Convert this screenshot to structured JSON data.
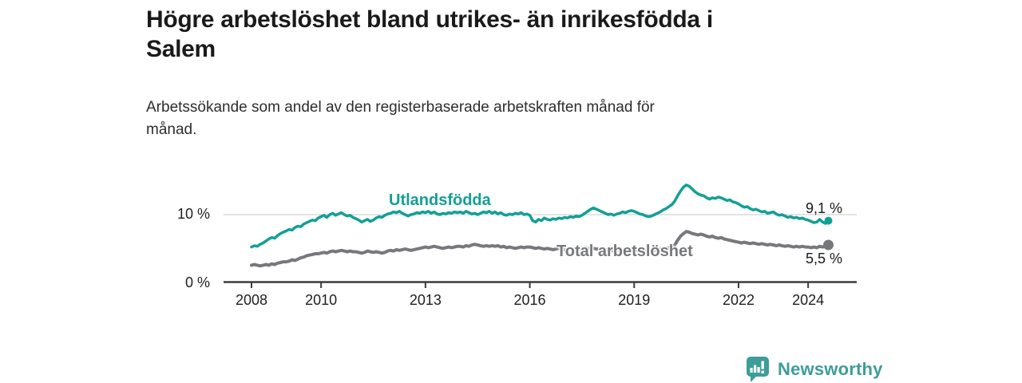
{
  "header": {
    "title_lines": [
      "Högre arbetslöshet bland utrikes- än inrikesfödda i",
      "Salem"
    ],
    "subtitle_lines": [
      "Arbetssökande som andel av den registerbaserade arbetskraften månad för",
      "månad."
    ]
  },
  "chart_data": {
    "type": "line",
    "x_start_year": 2008,
    "x_end": "2024-08",
    "points_per_month": 1,
    "ylim": [
      0,
      15
    ],
    "grid": "horizontal-at-10-only",
    "y_axis_ticks": [
      {
        "value": 0,
        "label": "0 %"
      },
      {
        "value": 10,
        "label": "10 %"
      }
    ],
    "x_ticks": [
      2008,
      2010,
      2013,
      2016,
      2019,
      2022,
      2024
    ],
    "series": [
      {
        "name": "Utlandsfödda",
        "color": "#12A095",
        "end_label": "9,1 %",
        "end_value": 9.1,
        "values": [
          5.2,
          5.4,
          5.3,
          5.6,
          5.8,
          6.1,
          6.4,
          6.6,
          6.5,
          6.9,
          7.2,
          7.4,
          7.6,
          7.8,
          7.7,
          8.1,
          8.3,
          8.2,
          8.6,
          8.8,
          9.0,
          9.2,
          9.1,
          9.5,
          9.7,
          9.9,
          9.6,
          10.0,
          10.2,
          9.9,
          10.1,
          10.3,
          10.0,
          9.8,
          9.9,
          9.6,
          9.4,
          9.2,
          8.9,
          9.1,
          9.3,
          9.0,
          9.2,
          9.5,
          9.7,
          9.6,
          9.9,
          10.1,
          10.2,
          10.4,
          10.3,
          10.5,
          10.2,
          10.0,
          9.8,
          10.0,
          10.1,
          10.3,
          10.2,
          10.4,
          10.3,
          10.5,
          10.2,
          10.4,
          10.1,
          10.0,
          10.2,
          10.1,
          10.3,
          10.2,
          10.4,
          10.3,
          10.4,
          10.2,
          10.5,
          10.3,
          10.1,
          10.2,
          10.0,
          10.2,
          10.4,
          10.3,
          10.5,
          10.2,
          10.4,
          10.1,
          10.3,
          10.0,
          9.9,
          10.1,
          10.0,
          10.2,
          10.1,
          10.3,
          10.0,
          10.1,
          9.9,
          9.1,
          8.9,
          9.3,
          9.1,
          9.5,
          9.3,
          9.2,
          9.4,
          9.3,
          9.5,
          9.4,
          9.6,
          9.5,
          9.7,
          9.6,
          9.8,
          9.7,
          9.9,
          10.2,
          10.5,
          10.8,
          11.0,
          10.8,
          10.6,
          10.4,
          10.2,
          10.0,
          10.1,
          9.9,
          10.1,
          10.2,
          10.4,
          10.3,
          10.5,
          10.6,
          10.5,
          10.3,
          10.1,
          10.0,
          9.8,
          9.7,
          9.8,
          10.0,
          10.2,
          10.4,
          10.7,
          10.9,
          11.2,
          11.5,
          12.0,
          12.8,
          13.5,
          14.1,
          14.4,
          14.2,
          13.8,
          13.4,
          13.1,
          12.9,
          12.8,
          12.5,
          12.3,
          12.5,
          12.4,
          12.6,
          12.5,
          12.3,
          12.1,
          12.2,
          11.9,
          11.8,
          11.6,
          11.3,
          11.1,
          11.2,
          10.9,
          10.7,
          10.8,
          10.6,
          10.4,
          10.5,
          10.2,
          10.3,
          10.4,
          10.1,
          9.9,
          10.0,
          9.8,
          9.6,
          9.7,
          9.5,
          9.6,
          9.4,
          9.5,
          9.3,
          9.2,
          9.0,
          8.8,
          8.9,
          9.3,
          8.9,
          8.7,
          9.1
        ]
      },
      {
        "name": "Total arbetslöshet",
        "color": "#77787C",
        "end_label": "5,5 %",
        "end_value": 5.5,
        "values": [
          2.5,
          2.6,
          2.5,
          2.4,
          2.5,
          2.6,
          2.5,
          2.7,
          2.6,
          2.8,
          2.9,
          3.0,
          3.0,
          3.1,
          3.3,
          3.2,
          3.4,
          3.6,
          3.7,
          3.9,
          4.0,
          4.1,
          4.2,
          4.2,
          4.3,
          4.4,
          4.3,
          4.5,
          4.6,
          4.5,
          4.6,
          4.7,
          4.6,
          4.5,
          4.6,
          4.5,
          4.5,
          4.4,
          4.3,
          4.4,
          4.6,
          4.5,
          4.4,
          4.5,
          4.4,
          4.3,
          4.4,
          4.6,
          4.7,
          4.6,
          4.8,
          4.7,
          4.8,
          4.9,
          4.8,
          4.7,
          4.8,
          4.9,
          5.0,
          5.1,
          5.2,
          5.1,
          5.2,
          5.3,
          5.2,
          5.1,
          5.0,
          5.1,
          5.2,
          5.1,
          5.2,
          5.3,
          5.3,
          5.2,
          5.4,
          5.3,
          5.5,
          5.6,
          5.5,
          5.4,
          5.3,
          5.4,
          5.3,
          5.4,
          5.3,
          5.4,
          5.2,
          5.3,
          5.1,
          5.2,
          5.1,
          5.0,
          5.1,
          5.2,
          5.1,
          5.2,
          5.2,
          5.1,
          5.0,
          5.1,
          5.0,
          4.9,
          5.0,
          4.9,
          4.8,
          4.9,
          5.0,
          4.9,
          4.8,
          4.9,
          5.0,
          4.9,
          5.0,
          4.9,
          5.0,
          5.1,
          5.0,
          4.9,
          5.0,
          4.9,
          4.9,
          4.8,
          4.7,
          4.8,
          4.7,
          4.6,
          4.7,
          4.8,
          4.7,
          4.8,
          4.9,
          4.8,
          4.8,
          4.7,
          4.6,
          4.7,
          4.6,
          4.5,
          4.6,
          4.7,
          4.8,
          4.9,
          5.0,
          5.0,
          5.1,
          5.2,
          5.5,
          6.2,
          6.8,
          7.2,
          7.5,
          7.4,
          7.2,
          7.1,
          7.0,
          7.1,
          7.0,
          6.8,
          6.7,
          6.8,
          6.6,
          6.5,
          6.6,
          6.4,
          6.3,
          6.2,
          6.1,
          6.0,
          5.9,
          5.8,
          5.9,
          5.8,
          5.7,
          5.8,
          5.7,
          5.6,
          5.7,
          5.6,
          5.5,
          5.6,
          5.5,
          5.4,
          5.5,
          5.4,
          5.3,
          5.4,
          5.3,
          5.2,
          5.3,
          5.2,
          5.3,
          5.2,
          5.2,
          5.1,
          5.2,
          5.1,
          5.3,
          5.2,
          5.3,
          5.5
        ]
      }
    ]
  },
  "colors": {
    "grid_line": "#DADADD",
    "axis_line": "#3C3C3C",
    "tick_text": "#1f1f1f",
    "title_text": "#1a1a1a",
    "brand_teal": "#3E9D98"
  },
  "footer": {
    "brand": "Newsworthy"
  }
}
